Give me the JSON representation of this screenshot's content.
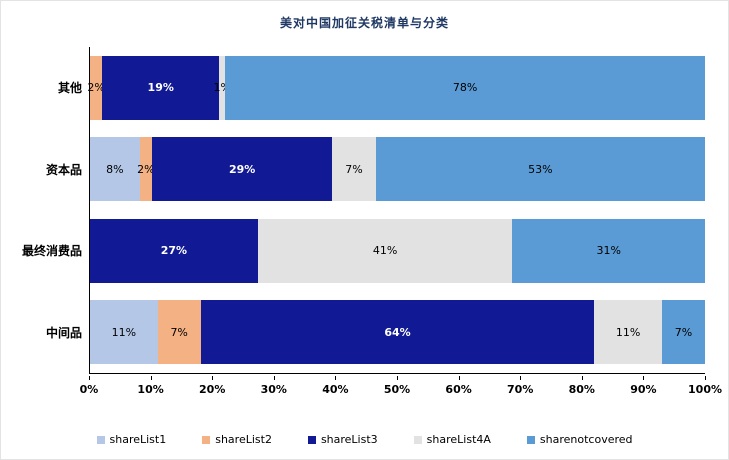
{
  "chart_data": {
    "type": "bar",
    "orientation": "horizontal",
    "stacked": true,
    "title": "美对中国加征关税清单与分类",
    "categories": [
      "其他",
      "资本品",
      "最终消费品",
      "中间品"
    ],
    "series": [
      {
        "name": "shareList1",
        "color": "#b4c7e7",
        "values": [
          0,
          8,
          0,
          11
        ]
      },
      {
        "name": "shareList2",
        "color": "#f4b183",
        "values": [
          2,
          2,
          0,
          7
        ]
      },
      {
        "name": "shareList3",
        "color": "#111a94",
        "values": [
          19,
          29,
          27,
          64
        ]
      },
      {
        "name": "shareList4A",
        "color": "#e2e2e2",
        "values": [
          1,
          7,
          41,
          11
        ]
      },
      {
        "name": "sharenotcovered",
        "color": "#5b9bd5",
        "values": [
          78,
          53,
          31,
          7
        ]
      }
    ],
    "xlim": [
      0,
      100
    ],
    "x_ticks": [
      "0%",
      "10%",
      "20%",
      "30%",
      "40%",
      "50%",
      "60%",
      "70%",
      "80%",
      "90%",
      "100%"
    ],
    "legend_position": "bottom",
    "grid": false
  }
}
